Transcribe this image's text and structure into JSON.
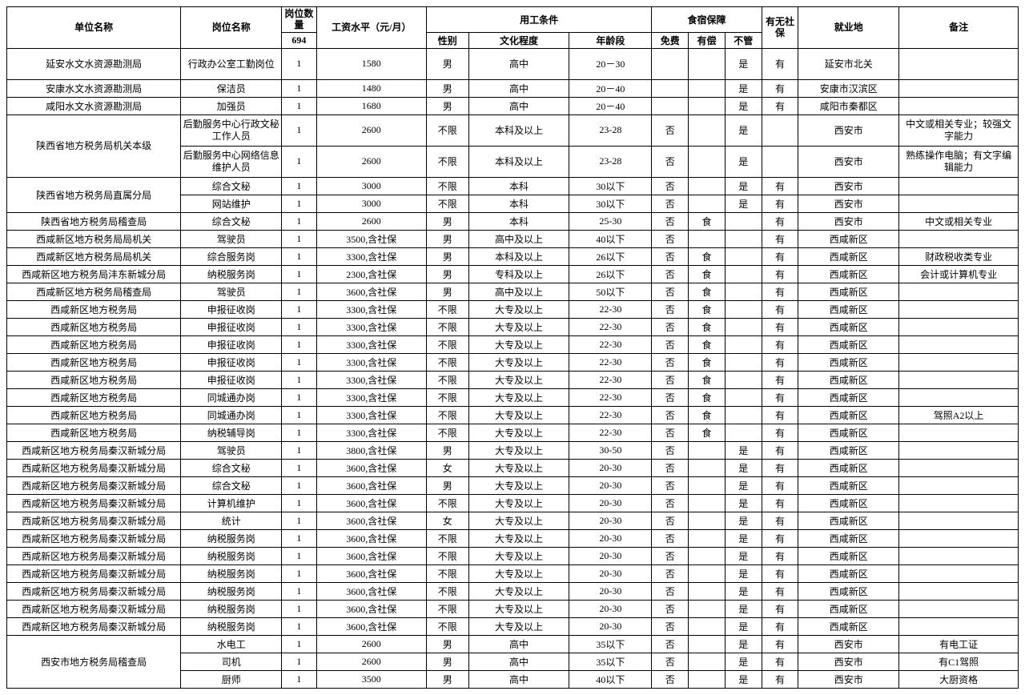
{
  "header": {
    "unit": "单位名称",
    "post": "岗位名称",
    "qty_top": "岗位数量",
    "qty_total": "694",
    "salary": "工资水平（元/月）",
    "work_cond": "用工条件",
    "gender": "性别",
    "edu": "文化程度",
    "age": "年龄段",
    "room_board": "食宿保障",
    "free": "免费",
    "paid": "有偿",
    "none": "不管",
    "ins": "有无社保",
    "loc": "就业地",
    "remark": "备注"
  },
  "rows": [
    {
      "u": "延安水文水资源勘测局",
      "p": "行政办公室工勤岗位",
      "q": "1",
      "s": "1580",
      "g": "男",
      "e": "高中",
      "a": "20－30",
      "f": "",
      "pd": "",
      "n": "是",
      "i": "有",
      "l": "延安市北关",
      "r": "",
      "tall": true
    },
    {
      "u": "安康水文水资源勘测局",
      "p": "保洁员",
      "q": "1",
      "s": "1480",
      "g": "男",
      "e": "高中",
      "a": "20－40",
      "f": "",
      "pd": "",
      "n": "是",
      "i": "有",
      "l": "安康市汉滨区",
      "r": ""
    },
    {
      "u": "咸阳水文水资源勘测局",
      "p": "加强员",
      "q": "1",
      "s": "1680",
      "g": "男",
      "e": "高中",
      "a": "20－40",
      "f": "",
      "pd": "",
      "n": "是",
      "i": "有",
      "l": "咸阳市秦都区",
      "r": ""
    },
    {
      "u": "陕西省地方税务局机关本级",
      "urs": 2,
      "p": "后勤服务中心行政文秘工作人员",
      "q": "1",
      "s": "2600",
      "g": "不限",
      "e": "本科及以上",
      "a": "23-28",
      "f": "否",
      "pd": "",
      "n": "是",
      "i": "",
      "l": "西安市",
      "r": "中文或相关专业；较强文字能力",
      "tall": true
    },
    {
      "u": "",
      "skipU": true,
      "p": "后勤服务中心网络信息维护人员",
      "q": "1",
      "s": "2600",
      "g": "不限",
      "e": "本科及以上",
      "a": "23-28",
      "f": "否",
      "pd": "",
      "n": "是",
      "i": "",
      "l": "西安市",
      "r": "熟练操作电脑；有文字编辑能力",
      "tall": true
    },
    {
      "u": "陕西省地方税务局直属分局",
      "urs": 2,
      "p": "综合文秘",
      "q": "1",
      "s": "3000",
      "g": "不限",
      "e": "本科",
      "a": "30以下",
      "f": "否",
      "pd": "",
      "n": "是",
      "i": "有",
      "l": "西安市",
      "r": ""
    },
    {
      "u": "",
      "skipU": true,
      "p": "网站维护",
      "q": "1",
      "s": "3000",
      "g": "不限",
      "e": "本科",
      "a": "30以下",
      "f": "否",
      "pd": "",
      "n": "是",
      "i": "有",
      "l": "西安市",
      "r": ""
    },
    {
      "u": "陕西省地方税务局稽查局",
      "p": "综合文秘",
      "q": "1",
      "s": "2600",
      "g": "男",
      "e": "本科",
      "a": "25-30",
      "f": "否",
      "pd": "食",
      "n": "",
      "i": "有",
      "l": "西安市",
      "r": "中文或相关专业"
    },
    {
      "u": "西咸新区地方税务局局机关",
      "p": "驾驶员",
      "q": "1",
      "s": "3500,含社保",
      "g": "男",
      "e": "高中及以上",
      "a": "40以下",
      "f": "否",
      "pd": "",
      "n": "",
      "i": "有",
      "l": "西咸新区",
      "r": ""
    },
    {
      "u": "西咸新区地方税务局局机关",
      "p": "综合服务岗",
      "q": "1",
      "s": "3300,含社保",
      "g": "男",
      "e": "本科及以上",
      "a": "26以下",
      "f": "否",
      "pd": "食",
      "n": "",
      "i": "有",
      "l": "西咸新区",
      "r": "财政税收类专业"
    },
    {
      "u": "西咸新区地方税务局沣东新城分局",
      "p": "纳税服务岗",
      "q": "1",
      "s": "2300,含社保",
      "g": "男",
      "e": "专科及以上",
      "a": "26以下",
      "f": "否",
      "pd": "食",
      "n": "",
      "i": "有",
      "l": "西咸新区",
      "r": "会计或计算机专业"
    },
    {
      "u": "西咸新区地方税务局稽查局",
      "p": "驾驶员",
      "q": "1",
      "s": "3600,含社保",
      "g": "男",
      "e": "高中及以上",
      "a": "50以下",
      "f": "否",
      "pd": "食",
      "n": "",
      "i": "有",
      "l": "西咸新区",
      "r": ""
    },
    {
      "u": "西咸新区地方税务局",
      "p": "申报征收岗",
      "q": "1",
      "s": "3300,含社保",
      "g": "不限",
      "e": "大专及以上",
      "a": "22-30",
      "f": "否",
      "pd": "食",
      "n": "",
      "i": "有",
      "l": "西咸新区",
      "r": ""
    },
    {
      "u": "西咸新区地方税务局",
      "p": "申报征收岗",
      "q": "1",
      "s": "3300,含社保",
      "g": "不限",
      "e": "大专及以上",
      "a": "22-30",
      "f": "否",
      "pd": "食",
      "n": "",
      "i": "有",
      "l": "西咸新区",
      "r": ""
    },
    {
      "u": "西咸新区地方税务局",
      "p": "申报征收岗",
      "q": "1",
      "s": "3300,含社保",
      "g": "不限",
      "e": "大专及以上",
      "a": "22-30",
      "f": "否",
      "pd": "食",
      "n": "",
      "i": "有",
      "l": "西咸新区",
      "r": ""
    },
    {
      "u": "西咸新区地方税务局",
      "p": "申报征收岗",
      "q": "1",
      "s": "3300,含社保",
      "g": "不限",
      "e": "大专及以上",
      "a": "22-30",
      "f": "否",
      "pd": "食",
      "n": "",
      "i": "有",
      "l": "西咸新区",
      "r": ""
    },
    {
      "u": "西咸新区地方税务局",
      "p": "申报征收岗",
      "q": "1",
      "s": "3300,含社保",
      "g": "不限",
      "e": "大专及以上",
      "a": "22-30",
      "f": "否",
      "pd": "食",
      "n": "",
      "i": "有",
      "l": "西咸新区",
      "r": ""
    },
    {
      "u": "西咸新区地方税务局",
      "p": "同城通办岗",
      "q": "1",
      "s": "3300,含社保",
      "g": "不限",
      "e": "大专及以上",
      "a": "22-30",
      "f": "否",
      "pd": "食",
      "n": "",
      "i": "有",
      "l": "西咸新区",
      "r": ""
    },
    {
      "u": "西咸新区地方税务局",
      "p": "同城通办岗",
      "q": "1",
      "s": "3300,含社保",
      "g": "不限",
      "e": "大专及以上",
      "a": "22-30",
      "f": "否",
      "pd": "食",
      "n": "",
      "i": "有",
      "l": "西咸新区",
      "r": "驾照A2以上"
    },
    {
      "u": "西咸新区地方税务局",
      "p": "纳税辅导岗",
      "q": "1",
      "s": "3300,含社保",
      "g": "不限",
      "e": "大专及以上",
      "a": "22-30",
      "f": "否",
      "pd": "食",
      "n": "",
      "i": "有",
      "l": "西咸新区",
      "r": ""
    },
    {
      "u": "西咸新区地方税务局秦汉新城分局",
      "p": "驾驶员",
      "q": "1",
      "s": "3800,含社保",
      "g": "男",
      "e": "大专及以上",
      "a": "30-50",
      "f": "否",
      "pd": "",
      "n": "是",
      "i": "有",
      "l": "西咸新区",
      "r": ""
    },
    {
      "u": "西咸新区地方税务局秦汉新城分局",
      "p": "综合文秘",
      "q": "1",
      "s": "3600,含社保",
      "g": "女",
      "e": "大专及以上",
      "a": "20-30",
      "f": "否",
      "pd": "",
      "n": "是",
      "i": "有",
      "l": "西咸新区",
      "r": ""
    },
    {
      "u": "西咸新区地方税务局秦汉新城分局",
      "p": "综合文秘",
      "q": "1",
      "s": "3600,含社保",
      "g": "男",
      "e": "大专及以上",
      "a": "20-30",
      "f": "否",
      "pd": "",
      "n": "是",
      "i": "有",
      "l": "西咸新区",
      "r": ""
    },
    {
      "u": "西咸新区地方税务局秦汉新城分局",
      "p": "计算机维护",
      "q": "1",
      "s": "3600,含社保",
      "g": "不限",
      "e": "大专及以上",
      "a": "20-30",
      "f": "否",
      "pd": "",
      "n": "是",
      "i": "有",
      "l": "西咸新区",
      "r": ""
    },
    {
      "u": "西咸新区地方税务局秦汉新城分局",
      "p": "统计",
      "q": "1",
      "s": "3600,含社保",
      "g": "女",
      "e": "大专及以上",
      "a": "20-30",
      "f": "否",
      "pd": "",
      "n": "是",
      "i": "有",
      "l": "西咸新区",
      "r": ""
    },
    {
      "u": "西咸新区地方税务局秦汉新城分局",
      "p": "纳税服务岗",
      "q": "1",
      "s": "3600,含社保",
      "g": "不限",
      "e": "大专及以上",
      "a": "20-30",
      "f": "否",
      "pd": "",
      "n": "是",
      "i": "有",
      "l": "西咸新区",
      "r": ""
    },
    {
      "u": "西咸新区地方税务局秦汉新城分局",
      "p": "纳税服务岗",
      "q": "1",
      "s": "3600,含社保",
      "g": "不限",
      "e": "大专及以上",
      "a": "20-30",
      "f": "否",
      "pd": "",
      "n": "是",
      "i": "有",
      "l": "西咸新区",
      "r": ""
    },
    {
      "u": "西咸新区地方税务局秦汉新城分局",
      "p": "纳税服务岗",
      "q": "1",
      "s": "3600,含社保",
      "g": "不限",
      "e": "大专及以上",
      "a": "20-30",
      "f": "否",
      "pd": "",
      "n": "是",
      "i": "有",
      "l": "西咸新区",
      "r": ""
    },
    {
      "u": "西咸新区地方税务局秦汉新城分局",
      "p": "纳税服务岗",
      "q": "1",
      "s": "3600,含社保",
      "g": "不限",
      "e": "大专及以上",
      "a": "20-30",
      "f": "否",
      "pd": "",
      "n": "是",
      "i": "有",
      "l": "西咸新区",
      "r": ""
    },
    {
      "u": "西咸新区地方税务局秦汉新城分局",
      "p": "纳税服务岗",
      "q": "1",
      "s": "3600,含社保",
      "g": "不限",
      "e": "大专及以上",
      "a": "20-30",
      "f": "否",
      "pd": "",
      "n": "是",
      "i": "有",
      "l": "西咸新区",
      "r": ""
    },
    {
      "u": "西咸新区地方税务局秦汉新城分局",
      "p": "纳税服务岗",
      "q": "1",
      "s": "3600,含社保",
      "g": "不限",
      "e": "大专及以上",
      "a": "20-30",
      "f": "否",
      "pd": "",
      "n": "是",
      "i": "有",
      "l": "西咸新区",
      "r": ""
    },
    {
      "u": "西安市地方税务局稽查局",
      "urs": 3,
      "p": "水电工",
      "q": "1",
      "s": "2600",
      "g": "男",
      "e": "高中",
      "a": "35以下",
      "f": "否",
      "pd": "",
      "n": "是",
      "i": "有",
      "l": "西安市",
      "r": "有电工证"
    },
    {
      "u": "",
      "skipU": true,
      "p": "司机",
      "q": "1",
      "s": "2600",
      "g": "男",
      "e": "高中",
      "a": "35以下",
      "f": "否",
      "pd": "",
      "n": "是",
      "i": "有",
      "l": "西安市",
      "r": "有C1驾照"
    },
    {
      "u": "",
      "skipU": true,
      "p": "厨师",
      "q": "1",
      "s": "3500",
      "g": "男",
      "e": "高中",
      "a": "40以下",
      "f": "否",
      "pd": "",
      "n": "是",
      "i": "有",
      "l": "西安市",
      "r": "大厨资格"
    }
  ],
  "col_widths": [
    "190",
    "110",
    "38",
    "120",
    "46",
    "110",
    "90",
    "40",
    "40",
    "40",
    "40",
    "110",
    "130"
  ]
}
